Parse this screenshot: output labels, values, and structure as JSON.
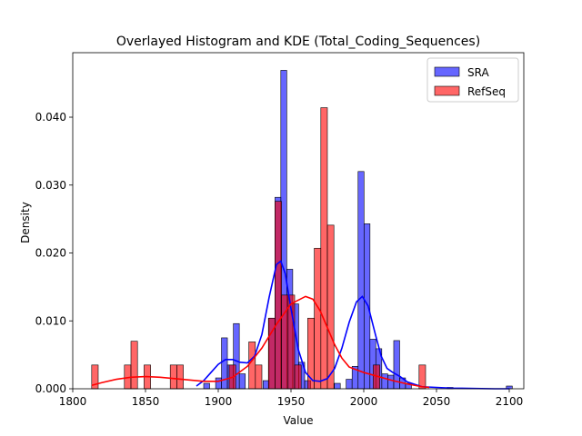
{
  "chart_data": {
    "type": "histogram",
    "title": "Overlayed Histogram and KDE (Total_Coding_Sequences)",
    "xlabel": "Value",
    "ylabel": "Density",
    "xlim": [
      1800,
      2110
    ],
    "ylim": [
      0,
      0.0495
    ],
    "xticks": [
      1800,
      1850,
      1900,
      1950,
      2000,
      2050,
      2100
    ],
    "yticks": [
      0.0,
      0.01,
      0.02,
      0.03,
      0.04
    ],
    "ytick_labels": [
      "0.000",
      "0.010",
      "0.020",
      "0.030",
      "0.040"
    ],
    "grid": false,
    "legend_position": "top-right",
    "series": [
      {
        "name": "SRA",
        "color": "#0000ff",
        "bin_width": 4.08,
        "bins": [
          [
            1890.0,
            0.0008
          ],
          [
            1894.1,
            0.0
          ],
          [
            1898.2,
            0.0016
          ],
          [
            1902.2,
            0.0075
          ],
          [
            1906.3,
            0.0035
          ],
          [
            1910.4,
            0.0096
          ],
          [
            1914.5,
            0.0022
          ],
          [
            1918.6,
            0.0
          ],
          [
            1922.6,
            0.0
          ],
          [
            1926.7,
            0.0
          ],
          [
            1930.8,
            0.0012
          ],
          [
            1934.9,
            0.0104
          ],
          [
            1939.0,
            0.0282
          ],
          [
            1943.0,
            0.0469
          ],
          [
            1947.1,
            0.0176
          ],
          [
            1951.2,
            0.0125
          ],
          [
            1955.3,
            0.0039
          ],
          [
            1959.4,
            0.0012
          ],
          [
            1963.4,
            0.0
          ],
          [
            1967.5,
            0.0
          ],
          [
            1971.6,
            0.0
          ],
          [
            1975.7,
            0.0
          ],
          [
            1979.8,
            0.0008
          ],
          [
            1983.8,
            0.0
          ],
          [
            1987.9,
            0.0014
          ],
          [
            1992.0,
            0.0033
          ],
          [
            1996.1,
            0.032
          ],
          [
            2000.2,
            0.0243
          ],
          [
            2004.2,
            0.0073
          ],
          [
            2008.3,
            0.0059
          ],
          [
            2012.4,
            0.0022
          ],
          [
            2016.5,
            0.002
          ],
          [
            2020.6,
            0.0071
          ],
          [
            2024.6,
            0.0016
          ],
          [
            2028.7,
            0.0008
          ],
          [
            2032.8,
            0.0
          ],
          [
            2036.9,
            0.0
          ],
          [
            2041.0,
            0.0
          ],
          [
            2045.0,
            0.0
          ],
          [
            2049.1,
            0.0
          ],
          [
            2053.2,
            0.0
          ],
          [
            2057.3,
            0.0002
          ],
          [
            2061.4,
            0.0
          ],
          [
            2098.0,
            0.0004
          ]
        ],
        "kde": [
          [
            1885,
            0.0004
          ],
          [
            1890,
            0.0012
          ],
          [
            1895,
            0.0024
          ],
          [
            1900,
            0.0036
          ],
          [
            1905,
            0.0043
          ],
          [
            1910,
            0.0043
          ],
          [
            1915,
            0.0039
          ],
          [
            1920,
            0.0038
          ],
          [
            1925,
            0.0048
          ],
          [
            1930,
            0.008
          ],
          [
            1935,
            0.0135
          ],
          [
            1940,
            0.0183
          ],
          [
            1943,
            0.0188
          ],
          [
            1946,
            0.017
          ],
          [
            1950,
            0.0118
          ],
          [
            1955,
            0.0058
          ],
          [
            1960,
            0.0024
          ],
          [
            1965,
            0.0012
          ],
          [
            1970,
            0.0011
          ],
          [
            1975,
            0.0015
          ],
          [
            1980,
            0.003
          ],
          [
            1985,
            0.006
          ],
          [
            1990,
            0.0098
          ],
          [
            1995,
            0.0128
          ],
          [
            1999,
            0.0136
          ],
          [
            2003,
            0.0122
          ],
          [
            2008,
            0.008
          ],
          [
            2012,
            0.0048
          ],
          [
            2016,
            0.003
          ],
          [
            2020,
            0.0024
          ],
          [
            2025,
            0.0018
          ],
          [
            2030,
            0.001
          ],
          [
            2040,
            0.0003
          ],
          [
            2060,
            0.0001
          ],
          [
            2090,
            0.0
          ],
          [
            2100,
            0.0
          ]
        ]
      },
      {
        "name": "RefSeq",
        "color": "#ff0000",
        "bin_width": 4.5,
        "bins": [
          [
            1813.0,
            0.0035
          ],
          [
            1817.5,
            0.0
          ],
          [
            1822.0,
            0.0
          ],
          [
            1826.5,
            0.0
          ],
          [
            1831.0,
            0.0
          ],
          [
            1835.5,
            0.0035
          ],
          [
            1840.0,
            0.007
          ],
          [
            1844.5,
            0.0
          ],
          [
            1849.0,
            0.0035
          ],
          [
            1853.5,
            0.0
          ],
          [
            1858.0,
            0.0
          ],
          [
            1862.5,
            0.0
          ],
          [
            1867.0,
            0.0035
          ],
          [
            1871.5,
            0.0035
          ],
          [
            1876.0,
            0.0
          ],
          [
            1880.5,
            0.0
          ],
          [
            1885.0,
            0.0
          ],
          [
            1889.5,
            0.0
          ],
          [
            1894.0,
            0.0
          ],
          [
            1898.5,
            0.0
          ],
          [
            1903.0,
            0.0
          ],
          [
            1907.5,
            0.0035
          ],
          [
            1912.0,
            0.0
          ],
          [
            1916.5,
            0.0
          ],
          [
            1921.0,
            0.0069
          ],
          [
            1925.5,
            0.0035
          ],
          [
            1930.0,
            0.0
          ],
          [
            1934.5,
            0.0104
          ],
          [
            1939.0,
            0.0276
          ],
          [
            1943.5,
            0.0138
          ],
          [
            1948.0,
            0.0138
          ],
          [
            1952.5,
            0.0035
          ],
          [
            1957.0,
            0.0
          ],
          [
            1961.5,
            0.0104
          ],
          [
            1966.0,
            0.0207
          ],
          [
            1970.5,
            0.0414
          ],
          [
            1975.0,
            0.0241
          ],
          [
            1979.5,
            0.0
          ],
          [
            1984.0,
            0.0
          ],
          [
            1988.5,
            0.0
          ],
          [
            1993.0,
            0.0
          ],
          [
            1997.5,
            0.0
          ],
          [
            2002.0,
            0.0
          ],
          [
            2006.5,
            0.0035
          ],
          [
            2011.0,
            0.0
          ],
          [
            2015.5,
            0.0
          ],
          [
            2020.0,
            0.0
          ],
          [
            2024.5,
            0.0
          ],
          [
            2029.0,
            0.0
          ],
          [
            2033.5,
            0.0
          ],
          [
            2038.0,
            0.0035
          ]
        ],
        "kde": [
          [
            1813,
            0.0005
          ],
          [
            1820,
            0.0009
          ],
          [
            1830,
            0.0014
          ],
          [
            1840,
            0.0017
          ],
          [
            1850,
            0.0018
          ],
          [
            1860,
            0.0017
          ],
          [
            1870,
            0.0015
          ],
          [
            1880,
            0.0013
          ],
          [
            1890,
            0.0011
          ],
          [
            1900,
            0.0011
          ],
          [
            1910,
            0.0017
          ],
          [
            1920,
            0.0033
          ],
          [
            1930,
            0.006
          ],
          [
            1940,
            0.0095
          ],
          [
            1950,
            0.0125
          ],
          [
            1960,
            0.0136
          ],
          [
            1965,
            0.0132
          ],
          [
            1970,
            0.0115
          ],
          [
            1975,
            0.009
          ],
          [
            1980,
            0.0065
          ],
          [
            1985,
            0.0045
          ],
          [
            1990,
            0.0032
          ],
          [
            2000,
            0.0024
          ],
          [
            2010,
            0.0018
          ],
          [
            2020,
            0.0012
          ],
          [
            2030,
            0.0007
          ],
          [
            2040,
            0.0003
          ],
          [
            2045,
            0.0002
          ]
        ]
      }
    ]
  }
}
